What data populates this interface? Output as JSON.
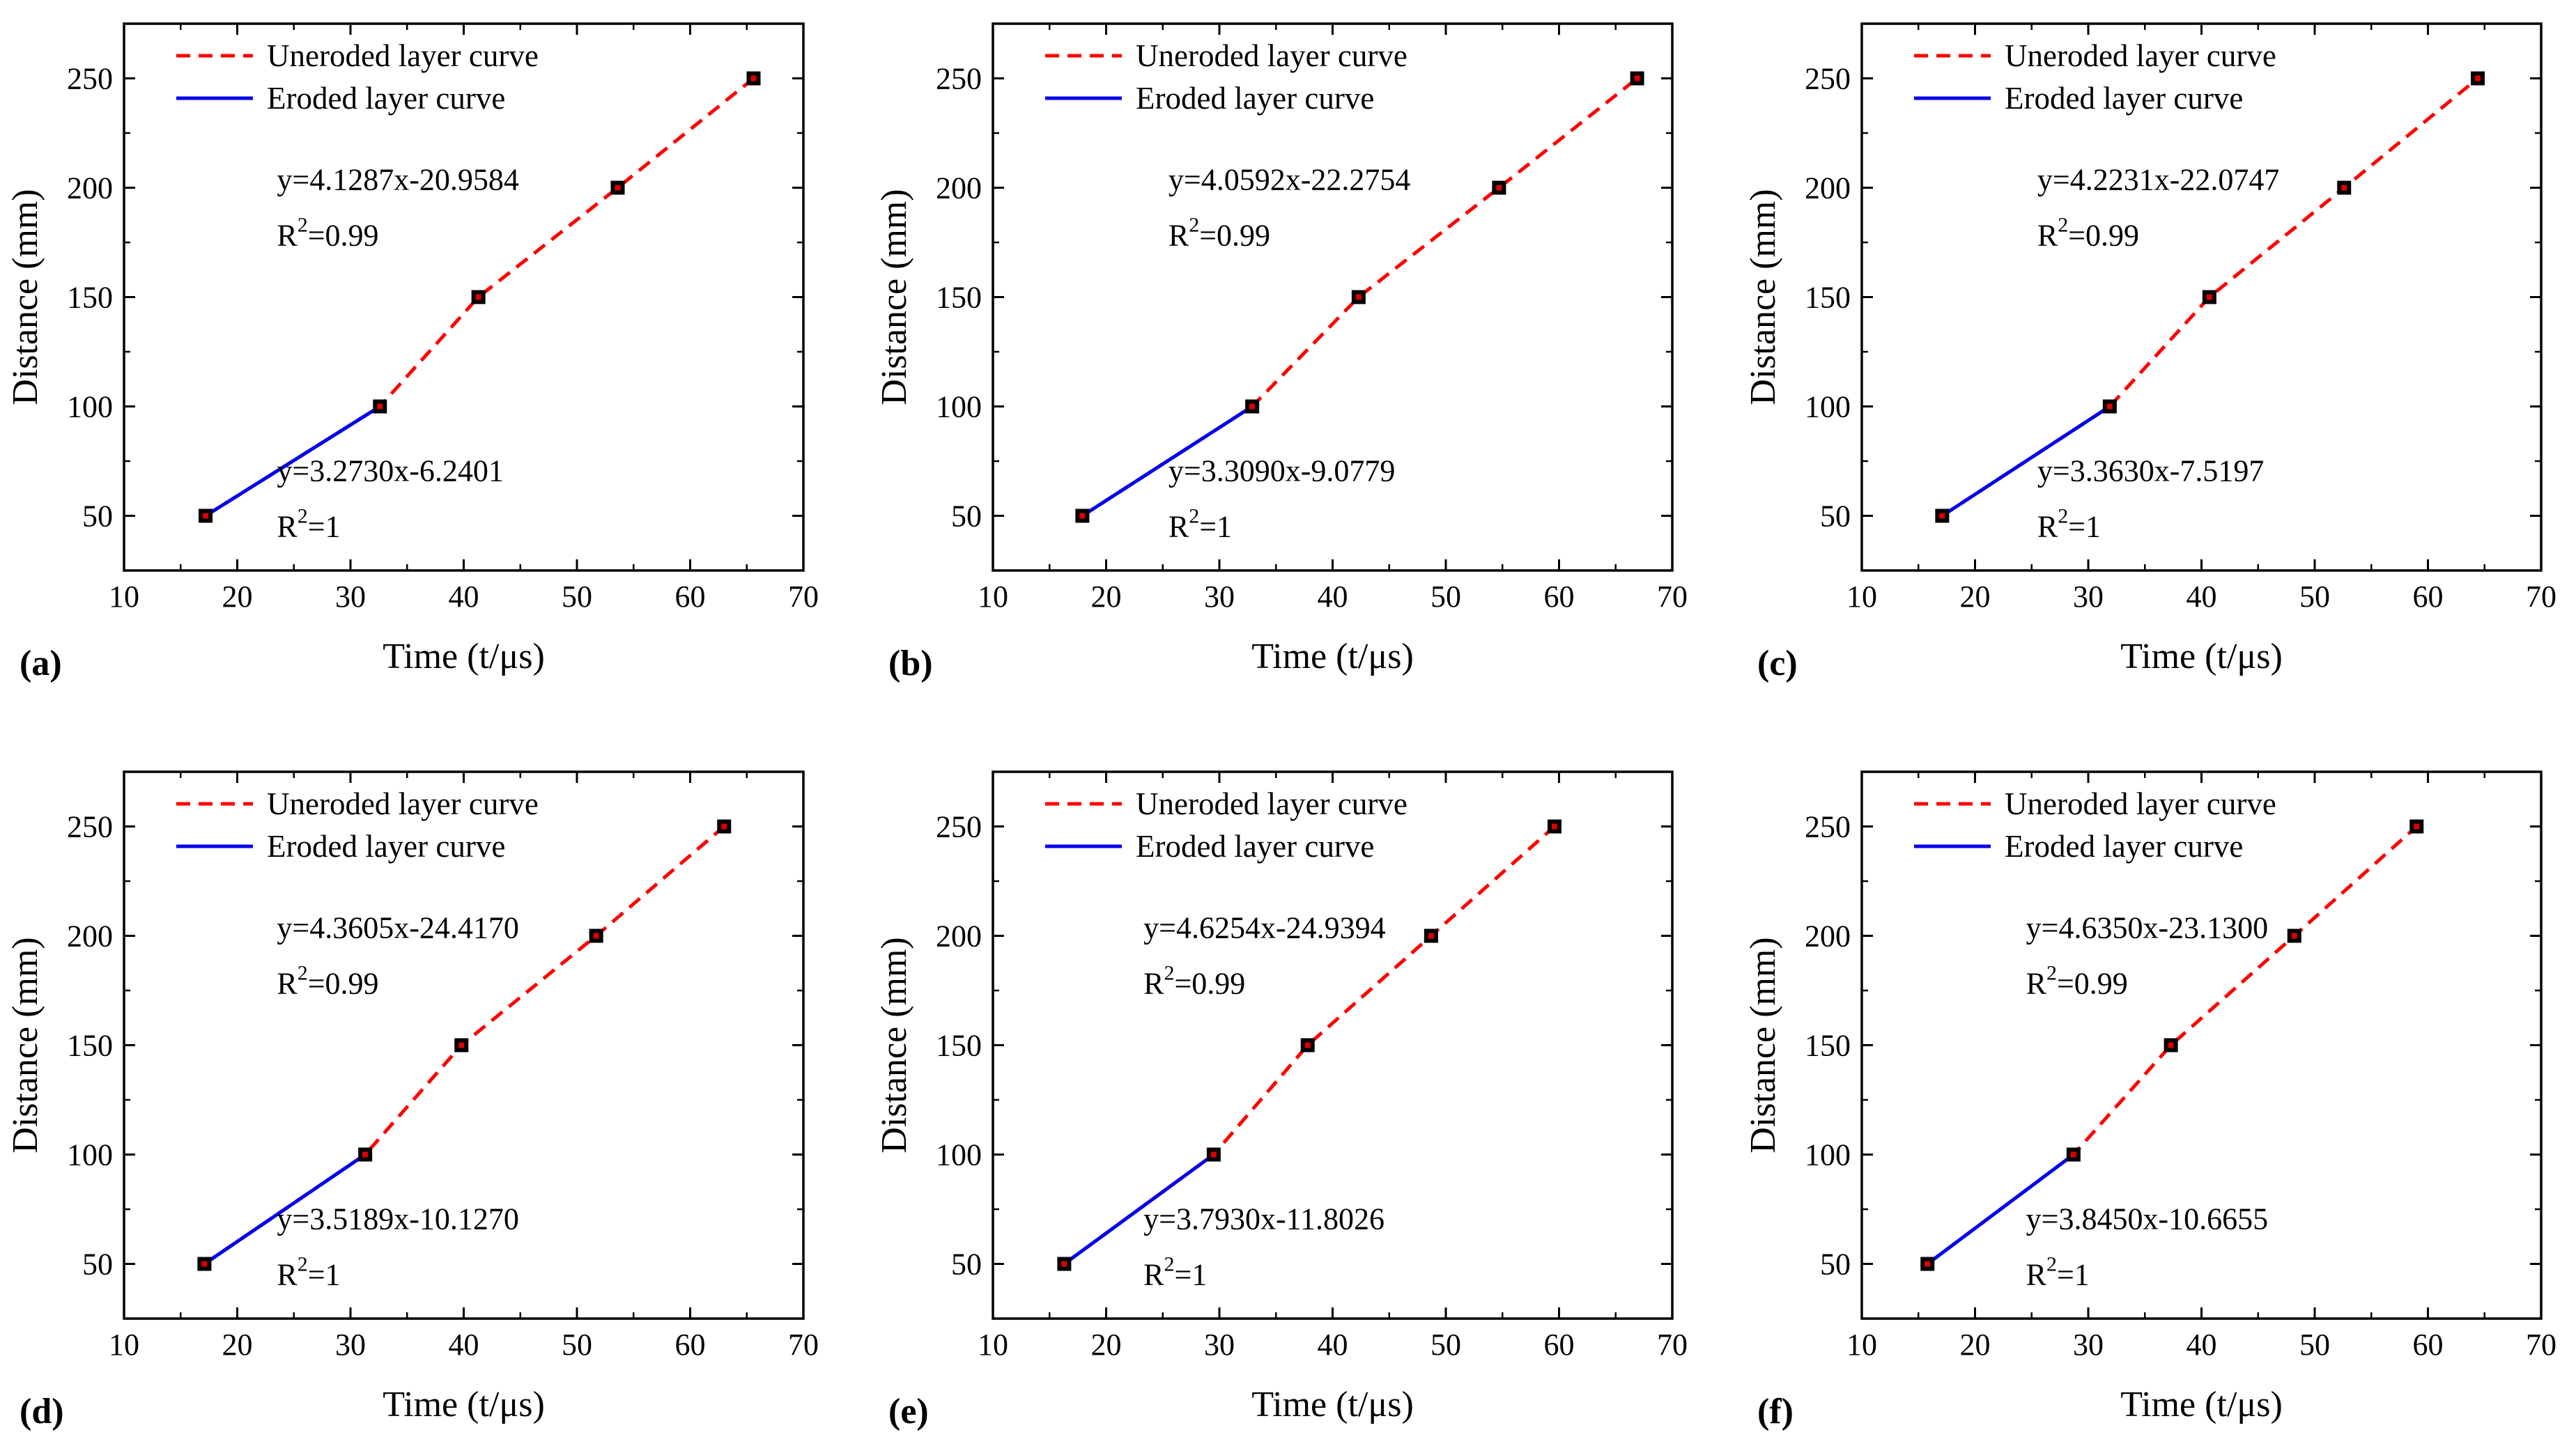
{
  "figure": {
    "panel_labels": [
      "(a)",
      "(b)",
      "(c)",
      "(d)",
      "(e)",
      "(f)"
    ]
  },
  "colors": {
    "uneroded": "#ff0000",
    "eroded": "#0000ee",
    "marker_fill": "#000000",
    "marker_center": "#dd0000"
  },
  "chart_data": [
    {
      "type": "line",
      "panel": "(a)",
      "xlabel": "Time (t/μs)",
      "ylabel": "Distance (mm)",
      "xlim": [
        10,
        70
      ],
      "ylim": [
        25,
        275
      ],
      "xticks": [
        10,
        20,
        30,
        40,
        50,
        60,
        70
      ],
      "yticks": [
        50,
        100,
        150,
        200,
        250
      ],
      "legend": [
        "Uneroded layer curve",
        "Eroded layer curve"
      ],
      "legend_position": "top-left",
      "series": [
        {
          "name": "Uneroded layer curve",
          "style": "dashed",
          "x": [
            17.2,
            32.6,
            41.3,
            53.6,
            65.6
          ],
          "y": [
            50,
            100,
            150,
            200,
            250
          ]
        },
        {
          "name": "Eroded layer curve",
          "style": "solid",
          "x": [
            17.2,
            32.6
          ],
          "y": [
            50,
            100
          ]
        }
      ],
      "annotations": [
        {
          "equation": "y=4.1287x-20.9584",
          "r2_prefix": "R",
          "r2_sup": "2",
          "r2_value": "=0.99",
          "anchor": [
            23.5,
            199
          ]
        },
        {
          "equation": "y=3.2730x-6.2401",
          "r2_prefix": "R",
          "r2_sup": "2",
          "r2_value": "=1",
          "anchor": [
            23.5,
            66
          ]
        }
      ]
    },
    {
      "type": "line",
      "panel": "(b)",
      "xlabel": "Time (t/μs)",
      "ylabel": "Distance (mm)",
      "xlim": [
        10,
        70
      ],
      "ylim": [
        25,
        275
      ],
      "xticks": [
        10,
        20,
        30,
        40,
        50,
        60,
        70
      ],
      "yticks": [
        50,
        100,
        150,
        200,
        250
      ],
      "legend": [
        "Uneroded layer curve",
        "Eroded layer curve"
      ],
      "legend_position": "top-left",
      "series": [
        {
          "name": "Uneroded layer curve",
          "style": "dashed",
          "x": [
            17.9,
            32.9,
            42.3,
            54.7,
            66.9
          ],
          "y": [
            50,
            100,
            150,
            200,
            250
          ]
        },
        {
          "name": "Eroded layer curve",
          "style": "solid",
          "x": [
            17.9,
            32.9
          ],
          "y": [
            50,
            100
          ]
        }
      ],
      "annotations": [
        {
          "equation": "y=4.0592x-22.2754",
          "r2_prefix": "R",
          "r2_sup": "2",
          "r2_value": "=0.99",
          "anchor": [
            25.5,
            199
          ]
        },
        {
          "equation": "y=3.3090x-9.0779",
          "r2_prefix": "R",
          "r2_sup": "2",
          "r2_value": "=1",
          "anchor": [
            25.5,
            66
          ]
        }
      ]
    },
    {
      "type": "line",
      "panel": "(c)",
      "xlabel": "Time (t/μs)",
      "ylabel": "Distance (mm)",
      "xlim": [
        10,
        70
      ],
      "ylim": [
        25,
        275
      ],
      "xticks": [
        10,
        20,
        30,
        40,
        50,
        60,
        70
      ],
      "yticks": [
        50,
        100,
        150,
        200,
        250
      ],
      "legend": [
        "Uneroded layer curve",
        "Eroded layer curve"
      ],
      "legend_position": "top-left",
      "series": [
        {
          "name": "Uneroded layer curve",
          "style": "dashed",
          "x": [
            17.1,
            31.9,
            40.7,
            52.6,
            64.4
          ],
          "y": [
            50,
            100,
            150,
            200,
            250
          ]
        },
        {
          "name": "Eroded layer curve",
          "style": "solid",
          "x": [
            17.1,
            31.9
          ],
          "y": [
            50,
            100
          ]
        }
      ],
      "annotations": [
        {
          "equation": "y=4.2231x-22.0747",
          "r2_prefix": "R",
          "r2_sup": "2",
          "r2_value": "=0.99",
          "anchor": [
            25.5,
            199
          ]
        },
        {
          "equation": "y=3.3630x-7.5197",
          "r2_prefix": "R",
          "r2_sup": "2",
          "r2_value": "=1",
          "anchor": [
            25.5,
            66
          ]
        }
      ]
    },
    {
      "type": "line",
      "panel": "(d)",
      "xlabel": "Time (t/μs)",
      "ylabel": "Distance (mm)",
      "xlim": [
        10,
        70
      ],
      "ylim": [
        25,
        275
      ],
      "xticks": [
        10,
        20,
        30,
        40,
        50,
        60,
        70
      ],
      "yticks": [
        50,
        100,
        150,
        200,
        250
      ],
      "legend": [
        "Uneroded layer curve",
        "Eroded layer curve"
      ],
      "legend_position": "top-left",
      "series": [
        {
          "name": "Uneroded layer curve",
          "style": "dashed",
          "x": [
            17.1,
            31.3,
            39.8,
            51.7,
            63.0
          ],
          "y": [
            50,
            100,
            150,
            200,
            250
          ]
        },
        {
          "name": "Eroded layer curve",
          "style": "solid",
          "x": [
            17.1,
            31.3
          ],
          "y": [
            50,
            100
          ]
        }
      ],
      "annotations": [
        {
          "equation": "y=4.3605x-24.4170",
          "r2_prefix": "R",
          "r2_sup": "2",
          "r2_value": "=0.99",
          "anchor": [
            23.5,
            199
          ]
        },
        {
          "equation": "y=3.5189x-10.1270",
          "r2_prefix": "R",
          "r2_sup": "2",
          "r2_value": "=1",
          "anchor": [
            23.5,
            66
          ]
        }
      ]
    },
    {
      "type": "line",
      "panel": "(e)",
      "xlabel": "Time (t/μs)",
      "ylabel": "Distance (mm)",
      "xlim": [
        10,
        70
      ],
      "ylim": [
        25,
        275
      ],
      "xticks": [
        10,
        20,
        30,
        40,
        50,
        60,
        70
      ],
      "yticks": [
        50,
        100,
        150,
        200,
        250
      ],
      "legend": [
        "Uneroded layer curve",
        "Eroded layer curve"
      ],
      "legend_position": "top-left",
      "series": [
        {
          "name": "Uneroded layer curve",
          "style": "dashed",
          "x": [
            16.3,
            29.5,
            37.8,
            48.7,
            59.6
          ],
          "y": [
            50,
            100,
            150,
            200,
            250
          ]
        },
        {
          "name": "Eroded layer curve",
          "style": "solid",
          "x": [
            16.3,
            29.5
          ],
          "y": [
            50,
            100
          ]
        }
      ],
      "annotations": [
        {
          "equation": "y=4.6254x-24.9394",
          "r2_prefix": "R",
          "r2_sup": "2",
          "r2_value": "=0.99",
          "anchor": [
            23.3,
            199
          ]
        },
        {
          "equation": "y=3.7930x-11.8026",
          "r2_prefix": "R",
          "r2_sup": "2",
          "r2_value": "=1",
          "anchor": [
            23.3,
            66
          ]
        }
      ]
    },
    {
      "type": "line",
      "panel": "(f)",
      "xlabel": "Time (t/μs)",
      "ylabel": "Distance (mm)",
      "xlim": [
        10,
        70
      ],
      "ylim": [
        25,
        275
      ],
      "xticks": [
        10,
        20,
        30,
        40,
        50,
        60,
        70
      ],
      "yticks": [
        50,
        100,
        150,
        200,
        250
      ],
      "legend": [
        "Uneroded layer curve",
        "Eroded layer curve"
      ],
      "legend_position": "top-left",
      "series": [
        {
          "name": "Uneroded layer curve",
          "style": "dashed",
          "x": [
            15.8,
            28.7,
            37.3,
            48.2,
            59.0
          ],
          "y": [
            50,
            100,
            150,
            200,
            250
          ]
        },
        {
          "name": "Eroded layer curve",
          "style": "solid",
          "x": [
            15.8,
            28.7
          ],
          "y": [
            50,
            100
          ]
        }
      ],
      "annotations": [
        {
          "equation": "y=4.6350x-23.1300",
          "r2_prefix": "R",
          "r2_sup": "2",
          "r2_value": "=0.99",
          "anchor": [
            24.5,
            199
          ]
        },
        {
          "equation": "y=3.8450x-10.6655",
          "r2_prefix": "R",
          "r2_sup": "2",
          "r2_value": "=1",
          "anchor": [
            24.5,
            66
          ]
        }
      ]
    }
  ]
}
